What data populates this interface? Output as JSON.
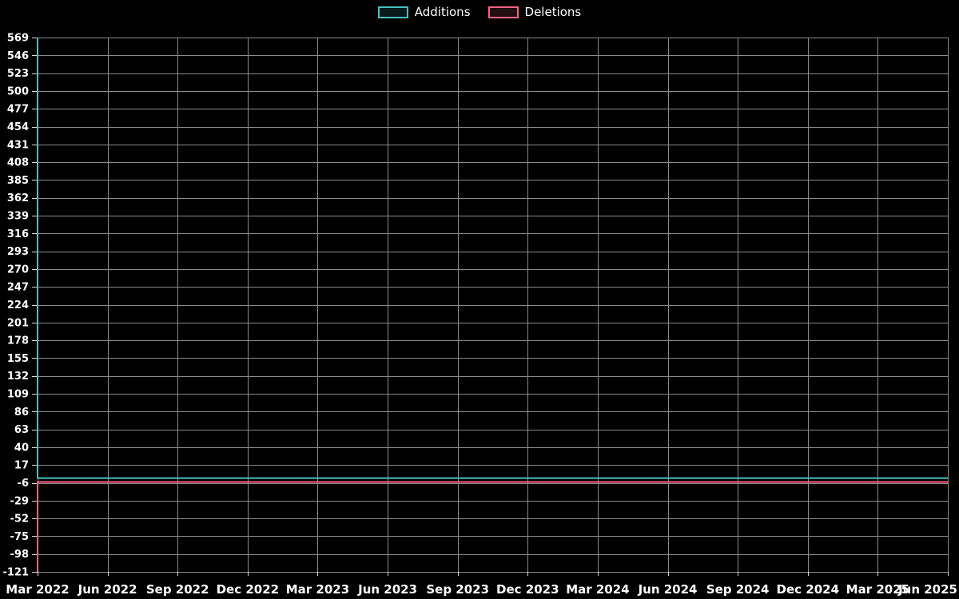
{
  "page": {
    "background": "#000000",
    "text_color": "#ffffff",
    "grid_color": "#8b8b8b"
  },
  "chart_data": {
    "type": "line",
    "title": "",
    "xlabel": "",
    "ylabel": "",
    "grid": true,
    "legend_position": "top-center",
    "ylim": [
      -121,
      569
    ],
    "y_tick_step": 23,
    "y_ticks": [
      569,
      546,
      523,
      500,
      477,
      454,
      431,
      408,
      385,
      362,
      339,
      316,
      293,
      270,
      247,
      224,
      201,
      178,
      155,
      132,
      109,
      86,
      63,
      40,
      17,
      -6,
      -29,
      -52,
      -75,
      -98,
      -121
    ],
    "x_ticks": [
      "Mar 2022",
      "Jun 2022",
      "Sep 2022",
      "Dec 2022",
      "Mar 2023",
      "Jun 2023",
      "Sep 2023",
      "Dec 2023",
      "Mar 2024",
      "Jun 2024",
      "Sep 2024",
      "Dec 2024",
      "Mar 2025",
      "Jun 2025"
    ],
    "series": [
      {
        "name": "Additions",
        "color": "#4bc0c0",
        "points": [
          {
            "x": "Mar 2022",
            "y": 569
          },
          {
            "x": "Mar 2022",
            "y": 0
          },
          {
            "x": "Jun 2025",
            "y": 0
          }
        ]
      },
      {
        "name": "Deletions",
        "color": "#ff6384",
        "points": [
          {
            "x": "Mar 2022",
            "y": -121
          },
          {
            "x": "Mar 2022",
            "y": -5
          },
          {
            "x": "Jun 2025",
            "y": -5
          }
        ]
      }
    ]
  }
}
